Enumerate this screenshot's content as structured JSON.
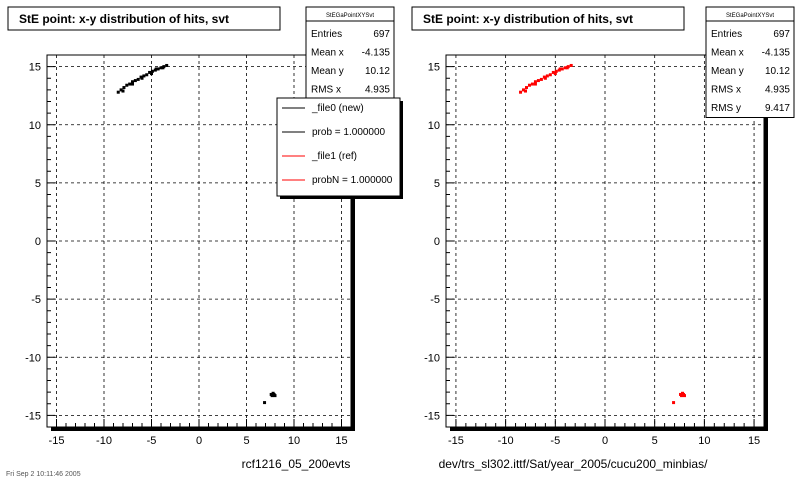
{
  "colors": {
    "new": "#000000",
    "ref": "#ff0000",
    "grid": "#000000",
    "panel_bg": "#ffffff"
  },
  "chart_data": [
    {
      "type": "scatter",
      "title": "StE point: x-y distribution of hits, svt",
      "xlim": [
        -16,
        16
      ],
      "ylim": [
        -16,
        16
      ],
      "x_ticks": [
        -15,
        -10,
        -5,
        0,
        5,
        10,
        15
      ],
      "y_ticks": [
        -15,
        -10,
        -5,
        0,
        5,
        10,
        15
      ],
      "grid": true,
      "stats": {
        "name": "StEGaPointXYSvt",
        "rows": [
          {
            "label": "Entries",
            "value": "697"
          },
          {
            "label": "Mean x",
            "value": "-4.135"
          },
          {
            "label": "Mean y",
            "value": "10.12"
          },
          {
            "label": "RMS x",
            "value": "4.935"
          }
        ]
      },
      "legend": {
        "placement": "top-right",
        "entries": [
          {
            "label": "_file0 (new)",
            "color": "#000000"
          },
          {
            "label": "prob = 1.000000",
            "color": "#000000"
          },
          {
            "label": "_file1 (ref)",
            "color": "#ff0000"
          },
          {
            "label": "probN = 1.000000",
            "color": "#ff0000"
          }
        ]
      },
      "series": [
        {
          "color": "#000000",
          "x": [
            -8.5,
            -8.2,
            -7.9,
            -7.6,
            -7.3,
            -7.0,
            -6.7,
            -6.4,
            -6.1,
            -5.8,
            -5.5,
            -5.2,
            -4.9,
            -4.6,
            -4.3,
            -4.0,
            -3.7,
            -3.4,
            -8.0,
            -7.0,
            -6.0,
            -5.0,
            -4.5,
            -3.8,
            7.6,
            7.8,
            8.0,
            7.9,
            7.7,
            6.9
          ],
          "y": [
            12.8,
            13.0,
            13.2,
            13.4,
            13.5,
            13.7,
            13.8,
            13.9,
            14.1,
            14.2,
            14.3,
            14.5,
            14.6,
            14.7,
            14.8,
            14.9,
            15.0,
            15.1,
            12.9,
            13.5,
            14.0,
            14.4,
            14.8,
            14.9,
            -13.2,
            -13.1,
            -13.3,
            -13.2,
            -13.3,
            -13.9
          ]
        }
      ],
      "footer": "rcf1216_05_200evts",
      "stamp": "Fri Sep 2 10:11:46 2005"
    },
    {
      "type": "scatter",
      "title": "StE point: x-y distribution of hits, svt",
      "xlim": [
        -16,
        16
      ],
      "ylim": [
        -16,
        16
      ],
      "x_ticks": [
        -15,
        -10,
        -5,
        0,
        5,
        10,
        15
      ],
      "y_ticks": [
        -15,
        -10,
        -5,
        0,
        5,
        10,
        15
      ],
      "grid": true,
      "stats": {
        "name": "StEGaPointXYSvt",
        "rows": [
          {
            "label": "Entries",
            "value": "697"
          },
          {
            "label": "Mean x",
            "value": "-4.135"
          },
          {
            "label": "Mean y",
            "value": "10.12"
          },
          {
            "label": "RMS x",
            "value": "4.935"
          },
          {
            "label": "RMS y",
            "value": "9.417"
          }
        ]
      },
      "series": [
        {
          "color": "#ff0000",
          "x": [
            -8.5,
            -8.2,
            -7.9,
            -7.6,
            -7.3,
            -7.0,
            -6.7,
            -6.4,
            -6.1,
            -5.8,
            -5.5,
            -5.2,
            -4.9,
            -4.6,
            -4.3,
            -4.0,
            -3.7,
            -3.4,
            -8.0,
            -7.0,
            -6.0,
            -5.0,
            -4.5,
            -3.8,
            7.6,
            7.8,
            8.0,
            7.9,
            7.7,
            6.9
          ],
          "y": [
            12.8,
            13.0,
            13.2,
            13.4,
            13.5,
            13.7,
            13.8,
            13.9,
            14.1,
            14.2,
            14.3,
            14.5,
            14.6,
            14.7,
            14.8,
            14.9,
            15.0,
            15.1,
            12.9,
            13.5,
            14.0,
            14.4,
            14.8,
            14.9,
            -13.2,
            -13.1,
            -13.3,
            -13.2,
            -13.3,
            -13.9
          ]
        }
      ],
      "footer": "dev/trs_sl302.ittf/Sat/year_2005/cucu200_minbias/"
    }
  ]
}
